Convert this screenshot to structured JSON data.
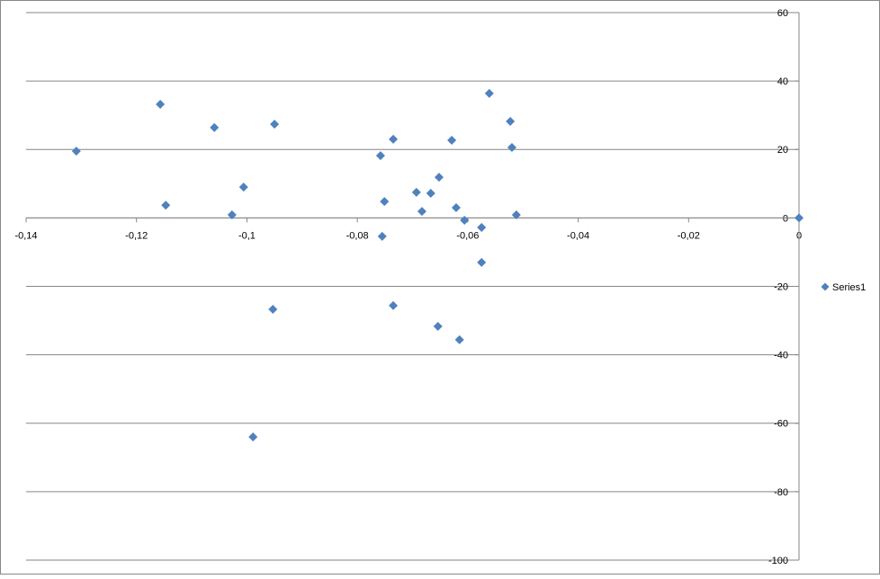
{
  "chart_data": {
    "type": "scatter",
    "series": [
      {
        "name": "Series1",
        "color": "#4f81bd",
        "x": [
          -0.1309,
          -0.1157,
          -0.1147,
          -0.1059,
          -0.1027,
          -0.1006,
          -0.095,
          -0.0953,
          -0.0989,
          -0.0758,
          -0.0751,
          -0.0755,
          -0.0735,
          -0.0735,
          -0.0693,
          -0.0683,
          -0.0667,
          -0.0652,
          -0.0654,
          -0.0629,
          -0.0621,
          -0.0615,
          -0.0606,
          -0.0575,
          -0.0575,
          -0.0561,
          -0.0523,
          -0.052,
          -0.0512,
          0
        ],
        "values": [
          19.5,
          33.2,
          3.7,
          26.4,
          0.9,
          9.0,
          27.4,
          -26.7,
          -64.0,
          18.2,
          4.8,
          -5.4,
          23.0,
          -25.6,
          7.5,
          1.9,
          7.2,
          11.9,
          -31.7,
          22.7,
          3.0,
          -35.6,
          -0.7,
          -2.8,
          -13.0,
          36.4,
          28.2,
          20.6,
          0.9,
          0
        ]
      }
    ],
    "xlim": [
      -0.14,
      0
    ],
    "xticks": [
      {
        "value": -0.14,
        "label": "-0,14"
      },
      {
        "value": -0.12,
        "label": "-0,12"
      },
      {
        "value": -0.1,
        "label": "-0,1"
      },
      {
        "value": -0.08,
        "label": "-0,08"
      },
      {
        "value": -0.06,
        "label": "-0,06"
      },
      {
        "value": -0.04,
        "label": "-0,04"
      },
      {
        "value": -0.02,
        "label": "-0,02"
      },
      0
    ],
    "ylim": [
      -100,
      60
    ],
    "yticks": [
      -100,
      -80,
      -60,
      -40,
      -20,
      0,
      20,
      40,
      60
    ],
    "grid": true,
    "legend": "right"
  }
}
